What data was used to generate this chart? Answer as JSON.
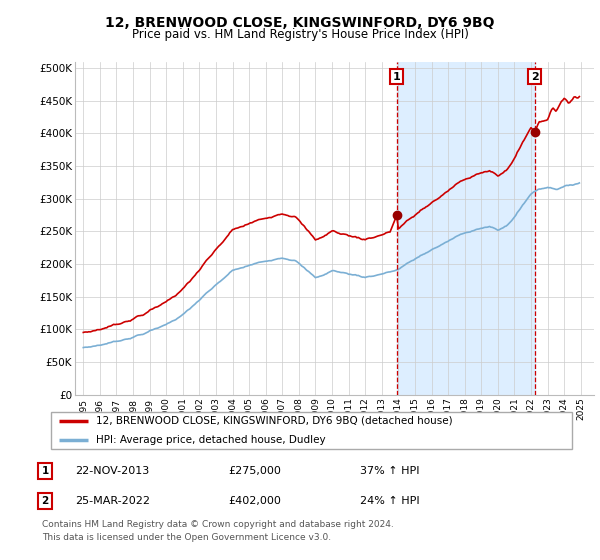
{
  "title": "12, BRENWOOD CLOSE, KINGSWINFORD, DY6 9BQ",
  "subtitle": "Price paid vs. HM Land Registry's House Price Index (HPI)",
  "legend_line1": "12, BRENWOOD CLOSE, KINGSWINFORD, DY6 9BQ (detached house)",
  "legend_line2": "HPI: Average price, detached house, Dudley",
  "footnote1": "Contains HM Land Registry data © Crown copyright and database right 2024.",
  "footnote2": "This data is licensed under the Open Government Licence v3.0.",
  "transaction1_label": "1",
  "transaction1_date": "22-NOV-2013",
  "transaction1_price": "£275,000",
  "transaction1_hpi": "37% ↑ HPI",
  "transaction2_label": "2",
  "transaction2_date": "25-MAR-2022",
  "transaction2_price": "£402,000",
  "transaction2_hpi": "24% ↑ HPI",
  "hpi_color": "#7bafd4",
  "price_color": "#cc0000",
  "marker_color": "#990000",
  "vline_color": "#cc0000",
  "shade_color": "#ddeeff",
  "grid_color": "#cccccc",
  "background_color": "#ffffff",
  "ylim_min": 0,
  "ylim_max": 510000,
  "yticks": [
    0,
    50000,
    100000,
    150000,
    200000,
    250000,
    300000,
    350000,
    400000,
    450000,
    500000
  ],
  "ytick_labels": [
    "£0",
    "£50K",
    "£100K",
    "£150K",
    "£200K",
    "£250K",
    "£300K",
    "£350K",
    "£400K",
    "£450K",
    "£500K"
  ],
  "xlim_min": 1994.5,
  "xlim_max": 2025.8,
  "transaction1_x": 2013.9,
  "transaction1_y": 275000,
  "transaction2_x": 2022.22,
  "transaction2_y": 402000
}
